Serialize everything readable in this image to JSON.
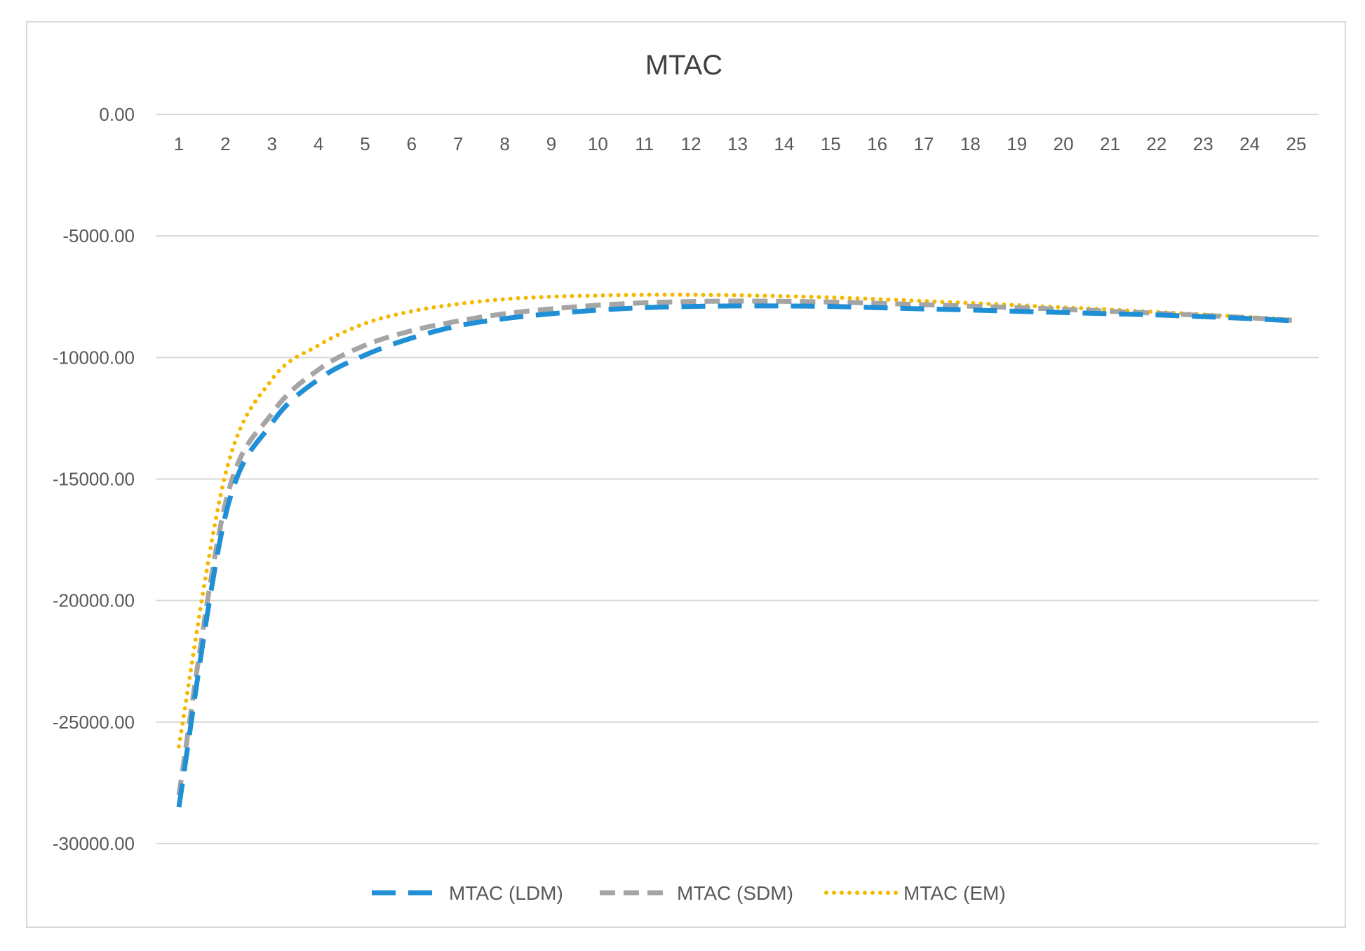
{
  "chart_data": {
    "type": "line",
    "title": "MTAC",
    "xlabel": "",
    "ylabel": "",
    "x": [
      1,
      2,
      3,
      4,
      5,
      6,
      7,
      8,
      9,
      10,
      11,
      12,
      13,
      14,
      15,
      16,
      17,
      18,
      19,
      20,
      21,
      22,
      23,
      24,
      25
    ],
    "x_tick_labels": [
      "1",
      "2",
      "3",
      "4",
      "5",
      "6",
      "7",
      "8",
      "9",
      "10",
      "11",
      "12",
      "13",
      "14",
      "15",
      "16",
      "17",
      "18",
      "19",
      "20",
      "21",
      "22",
      "23",
      "24",
      "25"
    ],
    "ylim": [
      -30000,
      0
    ],
    "y_ticks": [
      0,
      -5000,
      -10000,
      -15000,
      -20000,
      -25000,
      -30000
    ],
    "y_tick_labels": [
      "0.00",
      "-5000.00",
      "-10000.00",
      "-15000.00",
      "-20000.00",
      "-25000.00",
      "-30000.00"
    ],
    "x_axis_position": "top",
    "grid": true,
    "legend_position": "bottom",
    "series": [
      {
        "name": "MTAC (LDM)",
        "color": "#1f8fd6",
        "dash": "long-dash",
        "values": [
          -28500,
          -16500,
          -12700,
          -10900,
          -9900,
          -9200,
          -8700,
          -8400,
          -8200,
          -8050,
          -7950,
          -7900,
          -7880,
          -7880,
          -7900,
          -7950,
          -8000,
          -8050,
          -8100,
          -8150,
          -8200,
          -8250,
          -8320,
          -8400,
          -8500
        ]
      },
      {
        "name": "MTAC (SDM)",
        "color": "#a5a5a5",
        "dash": "dash",
        "values": [
          -28000,
          -16000,
          -12300,
          -10500,
          -9500,
          -8900,
          -8500,
          -8200,
          -8000,
          -7850,
          -7750,
          -7700,
          -7680,
          -7690,
          -7720,
          -7770,
          -7830,
          -7890,
          -7950,
          -8020,
          -8100,
          -8180,
          -8270,
          -8370,
          -8480
        ]
      },
      {
        "name": "MTAC (EM)",
        "color": "#f5b800",
        "dash": "dot",
        "values": [
          -26000,
          -14800,
          -10900,
          -9500,
          -8600,
          -8100,
          -7800,
          -7600,
          -7500,
          -7450,
          -7420,
          -7420,
          -7440,
          -7480,
          -7530,
          -7600,
          -7680,
          -7760,
          -7850,
          -7940,
          -8030,
          -8130,
          -8230,
          -8340,
          -8450
        ]
      }
    ]
  }
}
